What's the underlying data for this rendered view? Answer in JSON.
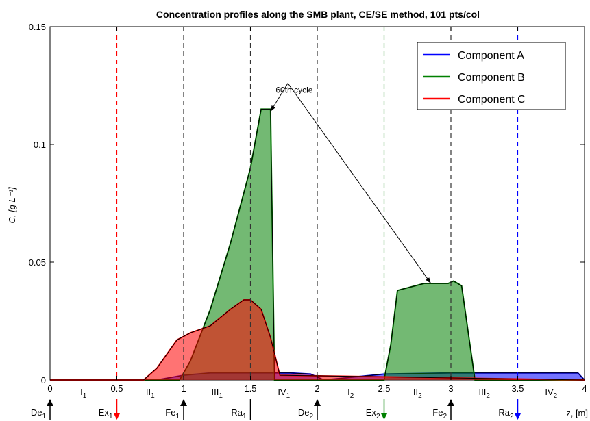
{
  "chart_data": {
    "type": "line",
    "title": "Concentration profiles along the SMB plant, CE/SE method, 101 pts/col",
    "ylabel": "C, [g L⁻¹]",
    "xlabel": "z, [m]",
    "xlim": [
      0,
      4
    ],
    "ylim": [
      0,
      0.15
    ],
    "x_ticks": [
      0,
      0.5,
      1,
      1.5,
      2,
      2.5,
      3,
      3.5,
      4
    ],
    "x_tick_labels": [
      "0",
      "0.5",
      "1",
      "1.5",
      "2",
      "2.5",
      "3",
      "3.5",
      "4"
    ],
    "y_ticks": [
      0,
      0.05,
      0.1,
      0.15
    ],
    "y_tick_labels": [
      "0",
      "0.05",
      "0.1",
      "0.15"
    ],
    "grid": false,
    "legend_position": "top-right",
    "series": [
      {
        "name": "Component A",
        "color": "#0000ff",
        "x": [
          0,
          0.8,
          1.0,
          1.2,
          1.6,
          1.8,
          1.95,
          2.05,
          2.5,
          3.0,
          3.6,
          3.95,
          4.0
        ],
        "y": [
          0,
          0,
          0.002,
          0.003,
          0.003,
          0.003,
          0.0025,
          0,
          0.0025,
          0.003,
          0.003,
          0.003,
          0
        ]
      },
      {
        "name": "Component B",
        "color": "#008000",
        "x": [
          0,
          0.97,
          1.05,
          1.2,
          1.35,
          1.5,
          1.58,
          1.62,
          1.65,
          1.68,
          2.0,
          2.5,
          2.55,
          2.6,
          2.8,
          2.98,
          3.02,
          3.08,
          3.18,
          4.0
        ],
        "y": [
          0,
          0,
          0.008,
          0.03,
          0.058,
          0.09,
          0.115,
          0.115,
          0.115,
          0,
          0,
          0,
          0.015,
          0.038,
          0.041,
          0.041,
          0.042,
          0.04,
          0,
          0
        ]
      },
      {
        "name": "Component C",
        "color": "#ff0000",
        "x": [
          0,
          0.7,
          0.8,
          0.95,
          1.05,
          1.2,
          1.35,
          1.45,
          1.5,
          1.58,
          1.65,
          1.72,
          4.0
        ],
        "y": [
          0,
          0,
          0.005,
          0.017,
          0.02,
          0.023,
          0.03,
          0.034,
          0.034,
          0.03,
          0.018,
          0.002,
          0
        ]
      }
    ],
    "zone_labels": [
      {
        "x": 0.25,
        "main": "I",
        "sub": "1"
      },
      {
        "x": 0.75,
        "main": "II",
        "sub": "1"
      },
      {
        "x": 1.25,
        "main": "III",
        "sub": "1"
      },
      {
        "x": 1.75,
        "main": "IV",
        "sub": "1"
      },
      {
        "x": 2.25,
        "main": "I",
        "sub": "2"
      },
      {
        "x": 2.75,
        "main": "II",
        "sub": "2"
      },
      {
        "x": 3.25,
        "main": "III",
        "sub": "2"
      },
      {
        "x": 3.75,
        "main": "IV",
        "sub": "2"
      }
    ],
    "ports": [
      {
        "x": 0,
        "main": "De",
        "sub": "1",
        "direction": "in",
        "color": "#000000",
        "line": false
      },
      {
        "x": 0.5,
        "main": "Ex",
        "sub": "1",
        "direction": "out",
        "color": "#ff0000",
        "line": true
      },
      {
        "x": 1,
        "main": "Fe",
        "sub": "1",
        "direction": "in",
        "color": "#000000",
        "line": true
      },
      {
        "x": 1.5,
        "main": "Ra",
        "sub": "1",
        "direction": "bar",
        "color": "#000000",
        "line": true
      },
      {
        "x": 2,
        "main": "De",
        "sub": "2",
        "direction": "in",
        "color": "#000000",
        "line": true
      },
      {
        "x": 2.5,
        "main": "Ex",
        "sub": "2",
        "direction": "out",
        "color": "#008000",
        "line": true
      },
      {
        "x": 3,
        "main": "Fe",
        "sub": "2",
        "direction": "in",
        "color": "#000000",
        "line": true
      },
      {
        "x": 3.5,
        "main": "Ra",
        "sub": "2",
        "direction": "out",
        "color": "#0000ff",
        "line": true
      }
    ],
    "annotations": [
      {
        "text": "60th cycle",
        "x": 1.92,
        "y": 0.122
      }
    ]
  }
}
